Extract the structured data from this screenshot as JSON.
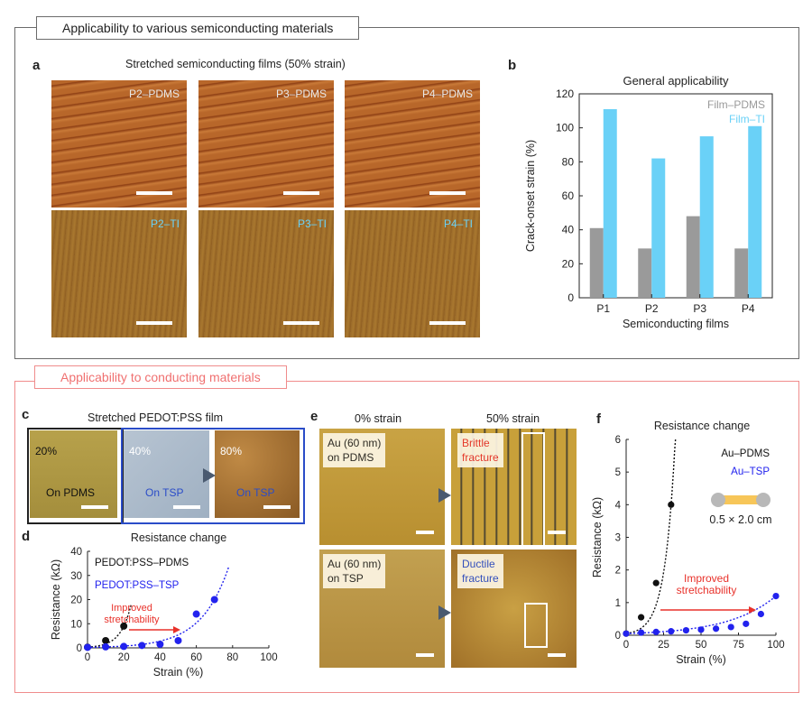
{
  "section1": {
    "title": "Applicability to various semiconducting materials"
  },
  "panel_a": {
    "letter": "a",
    "caption": "Stretched semiconducting films (50% strain)",
    "tiles": [
      {
        "label": "P2–PDMS"
      },
      {
        "label": "P3–PDMS"
      },
      {
        "label": "P4–PDMS"
      },
      {
        "label": "P2–TI"
      },
      {
        "label": "P3–TI"
      },
      {
        "label": "P4–TI"
      }
    ]
  },
  "panel_b": {
    "letter": "b",
    "chart_data": {
      "type": "bar",
      "title": "General applicability",
      "xlabel": "Semiconducting films",
      "ylabel": "Crack-onset strain (%)",
      "categories": [
        "P1",
        "P2",
        "P3",
        "P4"
      ],
      "ylim": [
        0,
        120
      ],
      "yticks": [
        0,
        20,
        40,
        60,
        80,
        100,
        120
      ],
      "legend_position": "top-right",
      "series": [
        {
          "name": "Film–PDMS",
          "color": "#9a9a9a",
          "values": [
            41,
            29,
            48,
            29
          ]
        },
        {
          "name": "Film–TI",
          "color": "#6ad1f7",
          "values": [
            111,
            82,
            95,
            101
          ]
        }
      ]
    }
  },
  "section2": {
    "title": "Applicability to conducting materials"
  },
  "panel_c": {
    "letter": "c",
    "caption": "Stretched PEDOT:PSS film",
    "images": [
      {
        "strain": "20%",
        "label": "On PDMS"
      },
      {
        "strain": "40%",
        "label": "On TSP"
      },
      {
        "strain": "80%",
        "label": "On TSP"
      }
    ]
  },
  "panel_d": {
    "letter": "d",
    "chart_data": {
      "type": "scatter",
      "title": "Resistance change",
      "xlabel": "Strain (%)",
      "ylabel": "Resistance (kΩ)",
      "xlim": [
        0,
        100
      ],
      "ylim": [
        0,
        40
      ],
      "xticks": [
        0,
        20,
        40,
        60,
        80,
        100
      ],
      "yticks": [
        0,
        10,
        20,
        30,
        40
      ],
      "series": [
        {
          "name": "PEDOT:PSS–PDMS",
          "color": "#111111",
          "x": [
            0,
            10,
            20
          ],
          "y": [
            0.3,
            3,
            9
          ]
        },
        {
          "name": "PEDOT:PSS–TSP",
          "color": "#2222ee",
          "x": [
            0,
            10,
            20,
            30,
            40,
            50,
            60,
            70
          ],
          "y": [
            0.2,
            0.4,
            0.6,
            1,
            1.5,
            3,
            14,
            20
          ]
        }
      ],
      "annotation": "Improved\nstretchability"
    }
  },
  "panel_e": {
    "letter": "e",
    "col_headers": [
      "0% strain",
      "50% strain"
    ],
    "row_labels": [
      "Au (60 nm)\non PDMS",
      "Au (60 nm)\non TSP"
    ],
    "fracture_labels": [
      "Brittle\nfracture",
      "Ductile\nfracture"
    ]
  },
  "panel_f": {
    "letter": "f",
    "chart_data": {
      "type": "scatter",
      "title": "Resistance change",
      "xlabel": "Strain (%)",
      "ylabel": "Resistance (kΩ)",
      "xlim": [
        0,
        100
      ],
      "ylim": [
        0,
        6
      ],
      "xticks": [
        0,
        25,
        50,
        75,
        100
      ],
      "yticks": [
        0,
        1,
        2,
        3,
        4,
        5,
        6
      ],
      "series": [
        {
          "name": "Au–PDMS",
          "color": "#111111",
          "x": [
            0,
            10,
            20,
            30
          ],
          "y": [
            0.05,
            0.55,
            1.6,
            4
          ]
        },
        {
          "name": "Au–TSP",
          "color": "#2222ee",
          "x": [
            0,
            10,
            20,
            30,
            40,
            50,
            60,
            70,
            80,
            90,
            100
          ],
          "y": [
            0.05,
            0.08,
            0.1,
            0.12,
            0.15,
            0.17,
            0.2,
            0.25,
            0.35,
            0.65,
            1.2
          ]
        }
      ],
      "annotation": "Improved\nstretchability",
      "sample_size": "0.5 × 2.0 cm"
    }
  },
  "colors": {
    "gray_bar": "#9a9a9a",
    "cyan_bar": "#6ad1f7",
    "blue_pts": "#2222ee",
    "red_arrow": "#e8312a",
    "title_red": "#f07070"
  }
}
